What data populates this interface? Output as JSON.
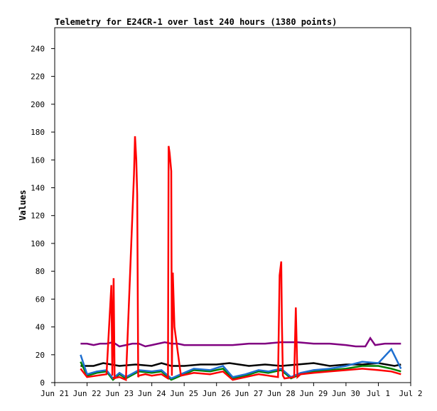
{
  "chart_data": {
    "type": "line",
    "title": "Telemetry for E24CR-1 over last 240 hours (1380 points)",
    "xlabel": "",
    "ylabel": "Values",
    "xlim": [
      0,
      11
    ],
    "ylim": [
      0,
      255
    ],
    "x_ticks": [
      {
        "x": 0,
        "label": "Jun 21"
      },
      {
        "x": 1,
        "label": "Jun 22"
      },
      {
        "x": 2,
        "label": "Jun 23"
      },
      {
        "x": 3,
        "label": "Jun 24"
      },
      {
        "x": 4,
        "label": "Jun 25"
      },
      {
        "x": 5,
        "label": "Jun 26"
      },
      {
        "x": 6,
        "label": "Jun 27"
      },
      {
        "x": 7,
        "label": "Jun 28"
      },
      {
        "x": 8,
        "label": "Jun 29"
      },
      {
        "x": 9,
        "label": "Jun 30"
      },
      {
        "x": 10,
        "label": "Jul 1"
      },
      {
        "x": 11,
        "label": "Jul 2"
      }
    ],
    "y_ticks": [
      0,
      20,
      40,
      60,
      80,
      100,
      120,
      140,
      160,
      180,
      200,
      220,
      240
    ],
    "grid": false,
    "legend": "none",
    "series": [
      {
        "color": "#800080",
        "x": [
          0.8,
          1.0,
          1.2,
          1.4,
          1.6,
          1.8,
          2.0,
          2.2,
          2.4,
          2.6,
          2.8,
          3.0,
          3.2,
          3.4,
          3.6,
          3.8,
          4.0,
          4.5,
          5.0,
          5.5,
          6.0,
          6.5,
          7.0,
          7.5,
          8.0,
          8.5,
          9.0,
          9.3,
          9.6,
          9.75,
          9.9,
          10.2,
          10.5,
          10.7
        ],
        "values": [
          28,
          28,
          27,
          28,
          28,
          29,
          26,
          27,
          28,
          28,
          26,
          27,
          28,
          29,
          28,
          28,
          27,
          27,
          27,
          27,
          28,
          28,
          29,
          29,
          28,
          28,
          27,
          26,
          26,
          32,
          27,
          28,
          28,
          28
        ]
      },
      {
        "color": "#000000",
        "x": [
          0.8,
          1.2,
          1.5,
          2.0,
          2.5,
          3.0,
          3.3,
          3.6,
          4.0,
          4.5,
          5.0,
          5.4,
          6.0,
          6.5,
          7.0,
          7.5,
          8.0,
          8.5,
          9.0,
          9.5,
          10.0,
          10.5,
          10.7
        ],
        "values": [
          12,
          12,
          14,
          12,
          13,
          12,
          14,
          12,
          12,
          13,
          13,
          14,
          12,
          13,
          12,
          13,
          14,
          12,
          13,
          13,
          14,
          12,
          13
        ]
      },
      {
        "color": "#008000",
        "x": [
          0.8,
          1.0,
          1.3,
          1.6,
          1.8,
          2.0,
          2.2,
          2.6,
          3.0,
          3.3,
          3.6,
          3.9,
          4.3,
          4.8,
          5.2,
          5.5,
          5.9,
          6.3,
          6.6,
          7.0,
          7.3,
          7.6,
          8.0,
          8.5,
          9.0,
          9.5,
          10.0,
          10.4,
          10.7
        ],
        "values": [
          15,
          5,
          7,
          8,
          2,
          6,
          3,
          8,
          7,
          8,
          2,
          5,
          9,
          8,
          10,
          3,
          5,
          8,
          7,
          9,
          3,
          6,
          8,
          9,
          10,
          12,
          12,
          10,
          8
        ]
      },
      {
        "color": "#1e6fd0",
        "x": [
          0.8,
          1.0,
          1.3,
          1.6,
          1.8,
          2.0,
          2.2,
          2.6,
          3.0,
          3.3,
          3.6,
          3.9,
          4.3,
          4.8,
          5.2,
          5.5,
          5.9,
          6.3,
          6.6,
          7.0,
          7.3,
          7.6,
          8.0,
          8.5,
          9.0,
          9.5,
          10.0,
          10.4,
          10.7
        ],
        "values": [
          20,
          6,
          8,
          9,
          3,
          7,
          4,
          9,
          8,
          9,
          3,
          6,
          10,
          9,
          12,
          4,
          6,
          9,
          8,
          10,
          4,
          7,
          9,
          10,
          12,
          15,
          14,
          24,
          10
        ]
      },
      {
        "color": "#ff0000",
        "x": [
          0.8,
          1.0,
          1.3,
          1.6,
          1.75,
          1.78,
          1.82,
          1.85,
          1.8,
          2.0,
          2.2,
          2.45,
          2.48,
          2.52,
          2.55,
          2.58,
          2.6,
          2.8,
          3.0,
          3.3,
          3.5,
          3.52,
          3.55,
          3.6,
          3.62,
          3.65,
          3.7,
          3.9,
          4.3,
          4.8,
          5.2,
          5.5,
          5.9,
          6.3,
          6.6,
          6.9,
          6.95,
          7.0,
          7.02,
          7.05,
          7.1,
          7.4,
          7.45,
          7.5,
          7.6,
          8.0,
          8.5,
          9.0,
          9.5,
          10.0,
          10.4,
          10.7
        ],
        "values": [
          10,
          4,
          5,
          6,
          70,
          5,
          75,
          4,
          3,
          4,
          2,
          150,
          177,
          160,
          135,
          4,
          5,
          6,
          5,
          6,
          3,
          170,
          165,
          152,
          5,
          79,
          40,
          5,
          7,
          6,
          8,
          2,
          4,
          6,
          5,
          4,
          77,
          87,
          44,
          5,
          3,
          4,
          54,
          4,
          6,
          7,
          8,
          9,
          10,
          9,
          8,
          6
        ]
      }
    ]
  }
}
